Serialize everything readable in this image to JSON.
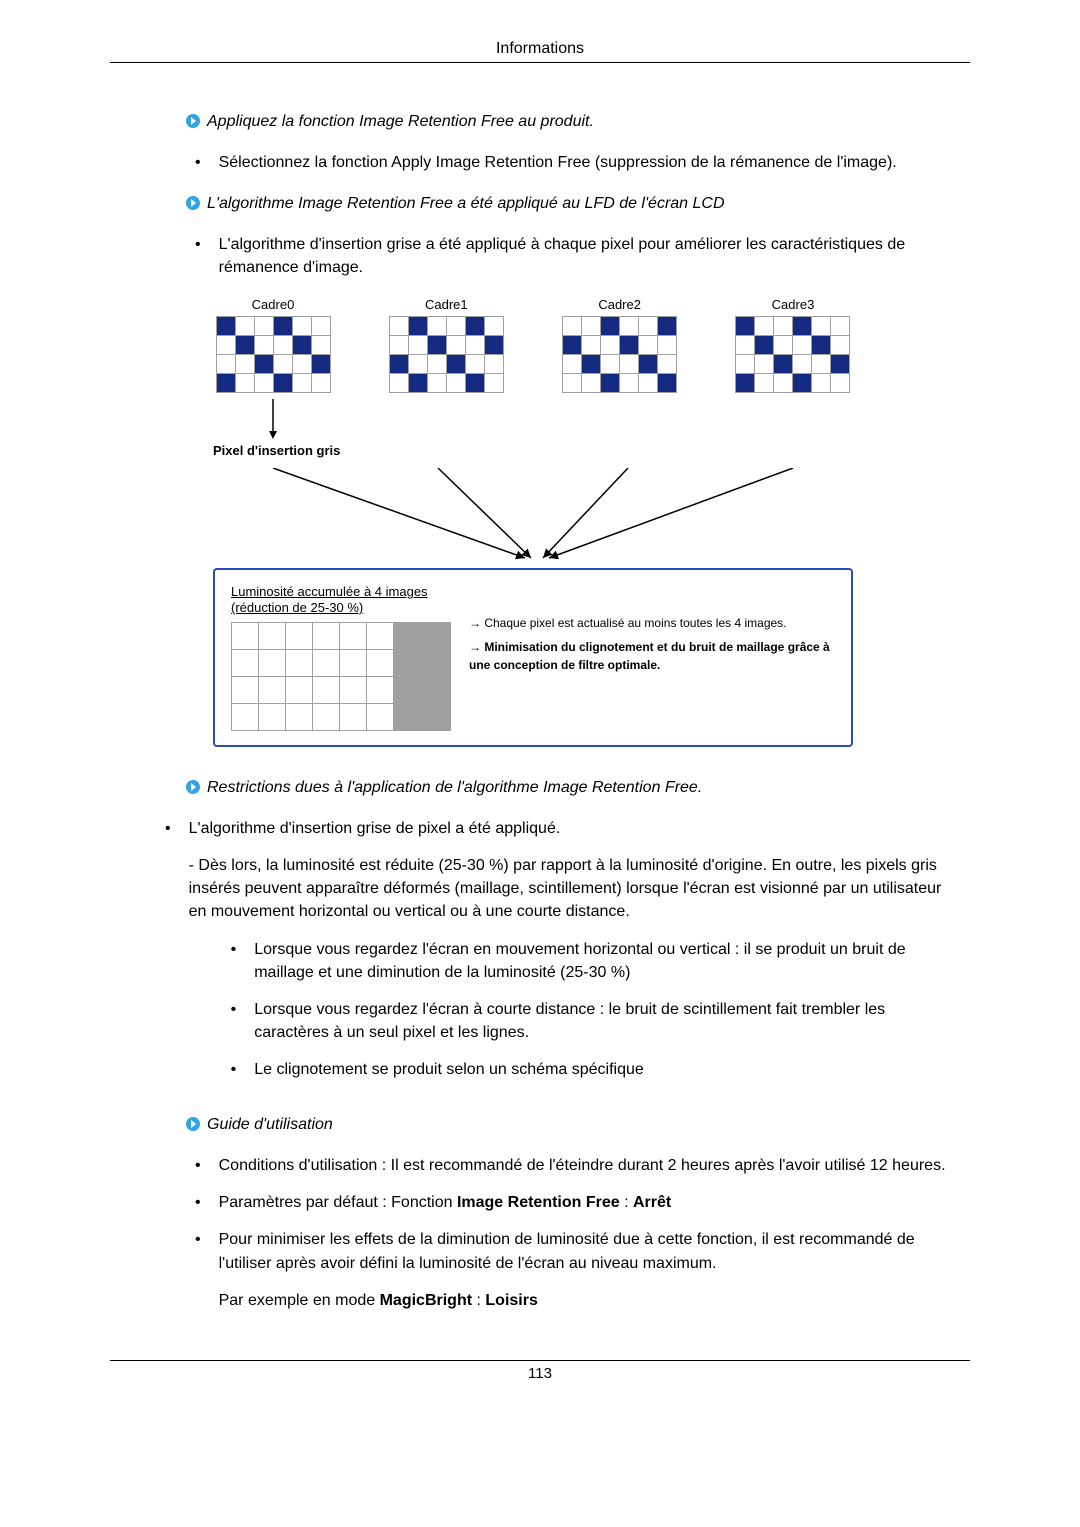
{
  "header": "Informations",
  "arrow_icon_color": "#34a4e0",
  "sections": {
    "note1": "Appliquez la fonction Image Retention Free au produit.",
    "bullet1": "Sélectionnez la fonction Apply Image Retention Free (suppression de la rémanence de l'image).",
    "note2": "L'algorithme Image Retention Free a été appliqué au LFD de l'écran LCD",
    "bullet2": "L'algorithme d'insertion grise a été appliqué à chaque pixel pour améliorer les caractéristiques de rémanence d'image.",
    "note3": "Restrictions dues à l'application de l'algorithme Image Retention Free.",
    "bullet3_head": "L'algorithme d'insertion grise de pixel a été appliqué.",
    "bullet3_para": "- Dès lors, la luminosité est réduite (25-30 %) par rapport à la luminosité d'origine. En outre, les pixels gris insérés peuvent apparaître déformés (maillage, scintillement) lorsque l'écran est visionné par un utilisateur en mouvement horizontal ou vertical ou à une courte distance.",
    "sub_a": "Lorsque vous regardez l'écran en mouvement horizontal ou vertical : il se produit un bruit de maillage et une diminution de la luminosité (25-30 %)",
    "sub_b": "Lorsque vous regardez l'écran à courte distance : le bruit de scintillement fait trembler les caractères à un seul pixel et les lignes.",
    "sub_c": "Le clignotement se produit selon un schéma spécifique",
    "note4": "Guide d'utilisation",
    "g1": "Conditions d'utilisation : Il est recommandé de l'éteindre durant 2 heures après l'avoir utilisé 12 heures.",
    "g2_a": "Paramètres par défaut : Fonction ",
    "g2_b": "Image Retention Free",
    "g2_c": " : ",
    "g2_d": "Arrêt",
    "g3_a": "Pour minimiser les effets de la diminution de luminosité due à cette fonction, il est recommandé de l'utiliser après avoir défini la luminosité de l'écran au niveau maximum.",
    "g3_b1": "Par exemple en mode ",
    "g3_b2": "MagicBright",
    "g3_b3": " : ",
    "g3_b4": "Loisirs"
  },
  "diagram": {
    "frame_labels": [
      "Cadre0",
      "Cadre1",
      "Cadre2",
      "Cadre3"
    ],
    "grid": {
      "cols": 6,
      "rows": 4
    },
    "on_color": "#142a80",
    "grid_border_color": "#a0a0a0",
    "frames_on": {
      "f0": [
        [
          0,
          0
        ],
        [
          0,
          3
        ],
        [
          1,
          1
        ],
        [
          1,
          4
        ],
        [
          2,
          2
        ],
        [
          2,
          5
        ],
        [
          3,
          0
        ],
        [
          3,
          3
        ]
      ],
      "f1": [
        [
          0,
          1
        ],
        [
          0,
          4
        ],
        [
          1,
          2
        ],
        [
          1,
          5
        ],
        [
          2,
          0
        ],
        [
          2,
          3
        ],
        [
          3,
          1
        ],
        [
          3,
          4
        ]
      ],
      "f2": [
        [
          0,
          2
        ],
        [
          0,
          5
        ],
        [
          1,
          0
        ],
        [
          1,
          3
        ],
        [
          2,
          1
        ],
        [
          2,
          4
        ],
        [
          3,
          2
        ],
        [
          3,
          5
        ]
      ],
      "f3": [
        [
          0,
          0
        ],
        [
          0,
          3
        ],
        [
          1,
          1
        ],
        [
          1,
          4
        ],
        [
          2,
          2
        ],
        [
          2,
          5
        ],
        [
          3,
          0
        ],
        [
          3,
          3
        ]
      ]
    },
    "pixel_label": "Pixel d'insertion gris",
    "lum_title": "Luminosité accumulée à 4 images (réduction de 25-30 %)",
    "lum_line1": "→ Chaque pixel est actualisé au moins toutes les 4 images.",
    "lum_line2": "→ Minimisation du clignotement et du bruit de maillage grâce à une conception de filtre optimale.",
    "box_border_color": "#2a4bb8"
  },
  "footer": "113"
}
